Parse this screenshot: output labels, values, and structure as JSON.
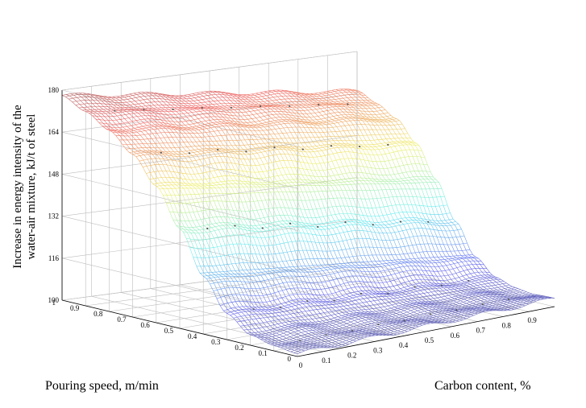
{
  "chart_data": {
    "type": "surface",
    "title": "",
    "xlabel": "Carbon content, %",
    "ylabel": "Pouring speed, m/min",
    "zlabel_lines": [
      "Increase in energy intensity of the",
      "water-air mixture, kJ/t of steel"
    ],
    "xlim": [
      0,
      1
    ],
    "ylim": [
      0,
      1
    ],
    "zlim": [
      100,
      180
    ],
    "xticks": [
      "0",
      "0.1",
      "0.2",
      "0.3",
      "0.4",
      "0.5",
      "0.6",
      "0.7",
      "0.8",
      "0.9"
    ],
    "yticks": [
      "0",
      "0.1",
      "0.2",
      "0.3",
      "0.4",
      "0.5",
      "0.6",
      "0.7",
      "0.8",
      "0.9",
      "1"
    ],
    "zticks": [
      "100",
      "116",
      "132",
      "148",
      "164",
      "180"
    ],
    "grid": true,
    "colormap": "jet",
    "corner_values": {
      "carbon_0_speed_1": 178,
      "carbon_1_speed_1": 165,
      "carbon_0_speed_0": 101,
      "carbon_1_speed_0": 103
    },
    "speed_profile": {
      "speed": [
        0,
        0.1,
        0.2,
        0.3,
        0.4,
        0.5,
        0.6,
        0.7,
        0.8,
        0.9,
        1.0
      ],
      "energy_at_carbon_0": [
        101,
        102,
        104,
        110,
        122,
        138,
        152,
        162,
        169,
        174,
        178
      ],
      "energy_at_carbon_1": [
        103,
        103,
        104,
        106,
        112,
        124,
        138,
        150,
        158,
        162,
        165
      ]
    }
  }
}
